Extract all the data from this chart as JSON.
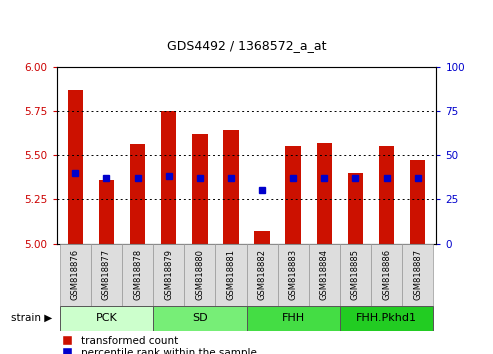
{
  "title": "GDS4492 / 1368572_a_at",
  "samples": [
    "GSM818876",
    "GSM818877",
    "GSM818878",
    "GSM818879",
    "GSM818880",
    "GSM818881",
    "GSM818882",
    "GSM818883",
    "GSM818884",
    "GSM818885",
    "GSM818886",
    "GSM818887"
  ],
  "transformed_count": [
    5.87,
    5.36,
    5.56,
    5.75,
    5.62,
    5.64,
    5.07,
    5.55,
    5.57,
    5.4,
    5.55,
    5.47
  ],
  "percentile_rank": [
    40,
    37,
    37,
    38,
    37,
    37,
    30,
    37,
    37,
    37,
    37,
    37
  ],
  "ylim_left": [
    5.0,
    6.0
  ],
  "ylim_right": [
    0,
    100
  ],
  "yticks_left": [
    5.0,
    5.25,
    5.5,
    5.75,
    6.0
  ],
  "yticks_right": [
    0,
    25,
    50,
    75,
    100
  ],
  "bar_color": "#cc1100",
  "dot_color": "#0000cc",
  "group_info": [
    {
      "label": "PCK",
      "start": 0,
      "end": 2,
      "color": "#ccffcc"
    },
    {
      "label": "SD",
      "start": 3,
      "end": 5,
      "color": "#77ee77"
    },
    {
      "label": "FHH",
      "start": 6,
      "end": 8,
      "color": "#44dd44"
    },
    {
      "label": "FHH.Pkhd1",
      "start": 9,
      "end": 11,
      "color": "#22cc22"
    }
  ],
  "tick_label_color_left": "#cc0000",
  "tick_label_color_right": "#0000cc",
  "bar_width": 0.5,
  "grid_linestyle": "dotted",
  "xtick_box_color": "#dddddd"
}
